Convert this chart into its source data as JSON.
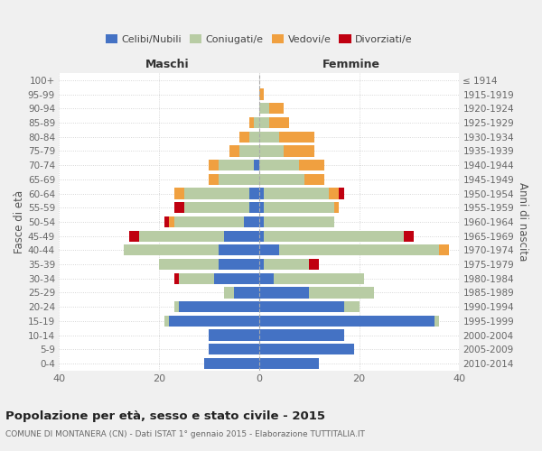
{
  "age_groups": [
    "0-4",
    "5-9",
    "10-14",
    "15-19",
    "20-24",
    "25-29",
    "30-34",
    "35-39",
    "40-44",
    "45-49",
    "50-54",
    "55-59",
    "60-64",
    "65-69",
    "70-74",
    "75-79",
    "80-84",
    "85-89",
    "90-94",
    "95-99",
    "100+"
  ],
  "birth_years": [
    "2010-2014",
    "2005-2009",
    "2000-2004",
    "1995-1999",
    "1990-1994",
    "1985-1989",
    "1980-1984",
    "1975-1979",
    "1970-1974",
    "1965-1969",
    "1960-1964",
    "1955-1959",
    "1950-1954",
    "1945-1949",
    "1940-1944",
    "1935-1939",
    "1930-1934",
    "1925-1929",
    "1920-1924",
    "1915-1919",
    "≤ 1914"
  ],
  "maschi": {
    "celibi": [
      11,
      10,
      10,
      18,
      16,
      5,
      9,
      8,
      8,
      7,
      3,
      2,
      2,
      0,
      1,
      0,
      0,
      0,
      0,
      0,
      0
    ],
    "coniugati": [
      0,
      0,
      0,
      1,
      1,
      2,
      7,
      12,
      19,
      17,
      14,
      13,
      13,
      8,
      7,
      4,
      2,
      1,
      0,
      0,
      0
    ],
    "vedovi": [
      0,
      0,
      0,
      0,
      0,
      0,
      0,
      0,
      0,
      0,
      1,
      0,
      2,
      2,
      2,
      2,
      2,
      1,
      0,
      0,
      0
    ],
    "divorziati": [
      0,
      0,
      0,
      0,
      0,
      0,
      1,
      0,
      0,
      2,
      1,
      2,
      0,
      0,
      0,
      0,
      0,
      0,
      0,
      0,
      0
    ]
  },
  "femmine": {
    "nubili": [
      12,
      19,
      17,
      35,
      17,
      10,
      3,
      1,
      4,
      1,
      1,
      1,
      1,
      0,
      0,
      0,
      0,
      0,
      0,
      0,
      0
    ],
    "coniugate": [
      0,
      0,
      0,
      1,
      3,
      13,
      18,
      9,
      32,
      28,
      14,
      14,
      13,
      9,
      8,
      5,
      4,
      2,
      2,
      0,
      0
    ],
    "vedove": [
      0,
      0,
      0,
      0,
      0,
      0,
      0,
      0,
      2,
      0,
      0,
      1,
      2,
      4,
      5,
      6,
      7,
      4,
      3,
      1,
      0
    ],
    "divorziate": [
      0,
      0,
      0,
      0,
      0,
      0,
      0,
      2,
      0,
      2,
      0,
      0,
      1,
      0,
      0,
      0,
      0,
      0,
      0,
      0,
      0
    ]
  },
  "colors": {
    "celibi": "#4472c4",
    "coniugati": "#b8cca4",
    "vedovi": "#f0a040",
    "divorziati": "#c00010"
  },
  "xlim": 40,
  "title": "Popolazione per età, sesso e stato civile - 2015",
  "subtitle": "COMUNE DI MONTANERA (CN) - Dati ISTAT 1° gennaio 2015 - Elaborazione TUTTITALIA.IT",
  "ylabel_left": "Fasce di età",
  "ylabel_right": "Anni di nascita",
  "xlabel_left": "Maschi",
  "xlabel_right": "Femmine",
  "legend_labels": [
    "Celibi/Nubili",
    "Coniugati/e",
    "Vedovi/e",
    "Divorziati/e"
  ],
  "bg_color": "#f0f0f0",
  "plot_bg_color": "#ffffff"
}
